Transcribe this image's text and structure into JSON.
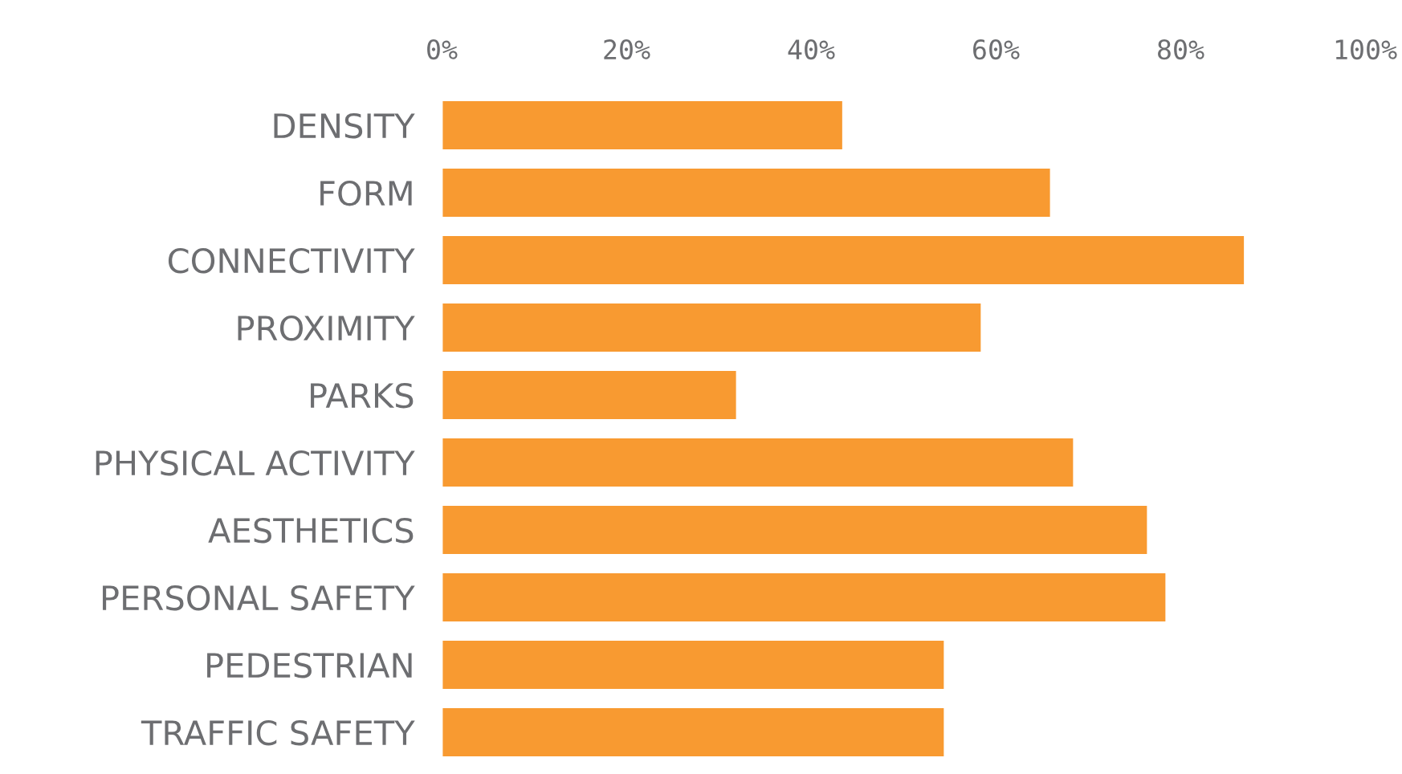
{
  "chart_data": {
    "type": "bar",
    "orientation": "horizontal",
    "categories": [
      "DENSITY",
      "FORM",
      "CONNECTIVITY",
      "PROXIMITY",
      "PARKS",
      "PHYSICAL ACTIVITY",
      "AESTHETICS",
      "PERSONAL SAFETY",
      "PEDESTRIAN",
      "TRAFFIC SAFETY"
    ],
    "series": [
      {
        "color": "#f89a31",
        "values": [
          43.5,
          66,
          87,
          58.5,
          32,
          68.5,
          76.5,
          78.5,
          54.5,
          54.5
        ]
      }
    ],
    "xlim": [
      0,
      100
    ],
    "xticks": [
      {
        "value": 0,
        "label": "0%"
      },
      {
        "value": 20,
        "label": "20%"
      },
      {
        "value": 40,
        "label": "40%"
      },
      {
        "value": 60,
        "label": "60%"
      },
      {
        "value": 80,
        "label": "80%"
      },
      {
        "value": 100,
        "label": "100%"
      }
    ],
    "grid": false,
    "legend": false
  }
}
